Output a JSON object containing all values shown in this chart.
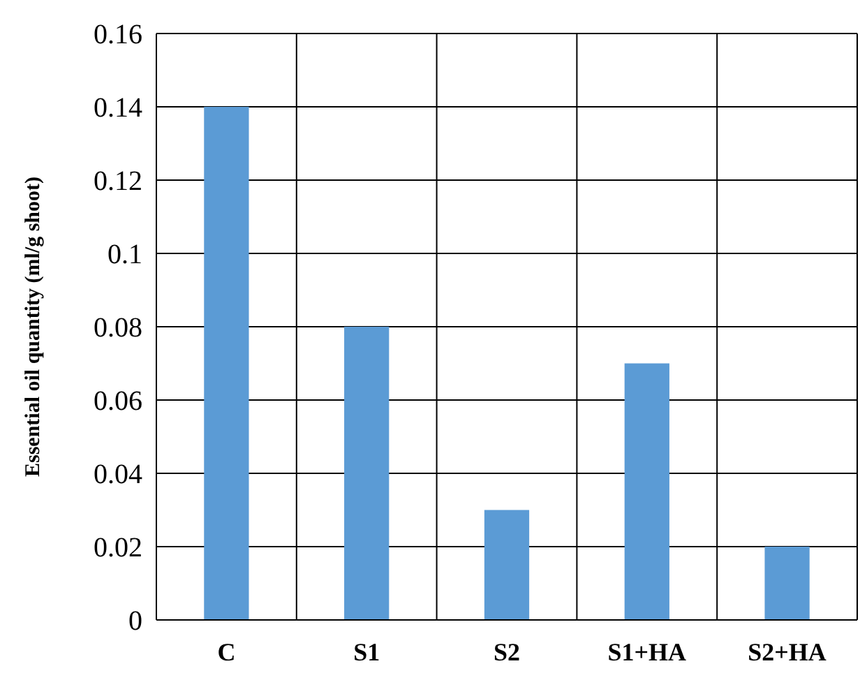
{
  "chart_data": {
    "type": "bar",
    "ylabel": "Essential oil quantity (ml/g shoot)",
    "categories": [
      "C",
      "S1",
      "S2",
      "S1+HA",
      "S2+HA"
    ],
    "values": [
      0.14,
      0.08,
      0.03,
      0.07,
      0.02
    ],
    "color": "#5b9bd5",
    "ylim": [
      0,
      0.16
    ],
    "yticks": [
      0,
      0.02,
      0.04,
      0.06,
      0.08,
      0.1,
      0.12,
      0.14,
      0.16
    ],
    "grid": true
  }
}
